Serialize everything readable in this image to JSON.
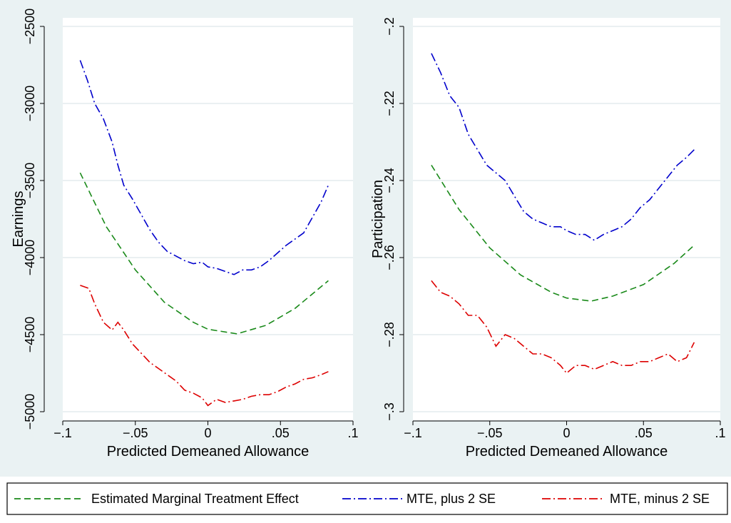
{
  "chart_data": [
    {
      "type": "line",
      "xlabel": "Predicted Demeaned Allowance",
      "ylabel": "Earnings",
      "xlim": [
        -0.1,
        0.1
      ],
      "ylim": [
        -5000,
        -2500
      ],
      "xticks": [
        -0.1,
        -0.05,
        0,
        0.05,
        0.1
      ],
      "xtick_labels": [
        "−.1",
        "−.05",
        "0",
        ".05",
        ".1"
      ],
      "yticks": [
        -5000,
        -4500,
        -4000,
        -3500,
        -3000,
        -2500
      ],
      "ytick_labels": [
        "−5000",
        "−4500",
        "−4000",
        "−3500",
        "−3000",
        "−2500"
      ],
      "grid": true,
      "series": [
        {
          "name": "Estimated Marginal Treatment Effect",
          "color": "#1a8a1a",
          "style": "dashed",
          "x": [
            -0.088,
            -0.07,
            -0.05,
            -0.03,
            -0.01,
            0.0,
            0.02,
            0.04,
            0.06,
            0.083
          ],
          "y": [
            -3450,
            -3800,
            -4080,
            -4290,
            -4420,
            -4465,
            -4495,
            -4440,
            -4330,
            -4150
          ]
        },
        {
          "name": "MTE, plus 2 SE",
          "color": "#0000cc",
          "style": "dashdot",
          "x": [
            -0.088,
            -0.083,
            -0.078,
            -0.072,
            -0.066,
            -0.062,
            -0.058,
            -0.052,
            -0.046,
            -0.04,
            -0.034,
            -0.028,
            -0.022,
            -0.016,
            -0.01,
            -0.004,
            0.0,
            0.006,
            0.012,
            0.018,
            0.024,
            0.03,
            0.036,
            0.042,
            0.048,
            0.054,
            0.06,
            0.066,
            0.072,
            0.078,
            0.083
          ],
          "y": [
            -2720,
            -2850,
            -3000,
            -3100,
            -3250,
            -3400,
            -3530,
            -3620,
            -3720,
            -3820,
            -3900,
            -3960,
            -3990,
            -4020,
            -4040,
            -4030,
            -4060,
            -4070,
            -4090,
            -4110,
            -4080,
            -4080,
            -4060,
            -4020,
            -3970,
            -3920,
            -3880,
            -3840,
            -3740,
            -3640,
            -3530
          ]
        },
        {
          "name": "MTE, minus 2 SE",
          "color": "#dd0000",
          "style": "dashdot",
          "x": [
            -0.088,
            -0.082,
            -0.078,
            -0.072,
            -0.066,
            -0.062,
            -0.058,
            -0.052,
            -0.046,
            -0.04,
            -0.034,
            -0.028,
            -0.022,
            -0.016,
            -0.01,
            -0.004,
            0.0,
            0.006,
            0.012,
            0.018,
            0.024,
            0.03,
            0.036,
            0.042,
            0.048,
            0.054,
            0.06,
            0.066,
            0.072,
            0.078,
            0.083
          ],
          "y": [
            -4180,
            -4200,
            -4300,
            -4420,
            -4470,
            -4420,
            -4470,
            -4560,
            -4620,
            -4680,
            -4720,
            -4760,
            -4800,
            -4860,
            -4880,
            -4910,
            -4960,
            -4920,
            -4940,
            -4930,
            -4920,
            -4900,
            -4890,
            -4890,
            -4870,
            -4840,
            -4820,
            -4790,
            -4780,
            -4760,
            -4740
          ]
        }
      ]
    },
    {
      "type": "line",
      "xlabel": "Predicted Demeaned Allowance",
      "ylabel": "Participation",
      "xlim": [
        -0.1,
        0.1
      ],
      "ylim": [
        -0.3,
        -0.2
      ],
      "xticks": [
        -0.1,
        -0.05,
        0,
        0.05,
        0.1
      ],
      "xtick_labels": [
        "−.1",
        "−.05",
        "0",
        ".05",
        ".1"
      ],
      "yticks": [
        -0.3,
        -0.28,
        -0.26,
        -0.24,
        -0.22,
        -0.2
      ],
      "ytick_labels": [
        "−.3",
        "−.28",
        "−.26",
        "−.24",
        "−.22",
        "−.2"
      ],
      "grid": true,
      "series": [
        {
          "name": "Estimated Marginal Treatment Effect",
          "color": "#1a8a1a",
          "style": "dashed",
          "x": [
            -0.088,
            -0.07,
            -0.05,
            -0.03,
            -0.01,
            0.0,
            0.016,
            0.03,
            0.05,
            0.07,
            0.083
          ],
          "y": [
            -0.236,
            -0.2475,
            -0.2575,
            -0.2645,
            -0.269,
            -0.2705,
            -0.2713,
            -0.27,
            -0.267,
            -0.2615,
            -0.2568
          ]
        },
        {
          "name": "MTE, plus 2 SE",
          "color": "#0000cc",
          "style": "dashdot",
          "x": [
            -0.088,
            -0.082,
            -0.076,
            -0.07,
            -0.064,
            -0.058,
            -0.052,
            -0.046,
            -0.04,
            -0.034,
            -0.028,
            -0.022,
            -0.016,
            -0.01,
            -0.004,
            0.0,
            0.006,
            0.012,
            0.018,
            0.024,
            0.03,
            0.036,
            0.042,
            0.048,
            0.054,
            0.06,
            0.066,
            0.072,
            0.078,
            0.083
          ],
          "y": [
            -0.207,
            -0.212,
            -0.218,
            -0.221,
            -0.228,
            -0.232,
            -0.236,
            -0.238,
            -0.24,
            -0.244,
            -0.248,
            -0.25,
            -0.251,
            -0.252,
            -0.252,
            -0.253,
            -0.254,
            -0.254,
            -0.2555,
            -0.254,
            -0.253,
            -0.252,
            -0.25,
            -0.247,
            -0.245,
            -0.242,
            -0.239,
            -0.236,
            -0.234,
            -0.232
          ]
        },
        {
          "name": "MTE, minus 2 SE",
          "color": "#dd0000",
          "style": "dashdot",
          "x": [
            -0.088,
            -0.082,
            -0.076,
            -0.07,
            -0.064,
            -0.058,
            -0.052,
            -0.046,
            -0.04,
            -0.034,
            -0.028,
            -0.022,
            -0.016,
            -0.01,
            -0.004,
            0.0,
            0.006,
            0.012,
            0.018,
            0.024,
            0.03,
            0.036,
            0.042,
            0.048,
            0.054,
            0.06,
            0.066,
            0.072,
            0.078,
            0.083
          ],
          "y": [
            -0.266,
            -0.269,
            -0.27,
            -0.272,
            -0.275,
            -0.275,
            -0.278,
            -0.283,
            -0.28,
            -0.281,
            -0.283,
            -0.285,
            -0.285,
            -0.286,
            -0.288,
            -0.29,
            -0.288,
            -0.288,
            -0.289,
            -0.288,
            -0.287,
            -0.288,
            -0.288,
            -0.287,
            -0.287,
            -0.286,
            -0.285,
            -0.287,
            -0.286,
            -0.282
          ]
        }
      ]
    }
  ],
  "legend": {
    "placement": "bottom",
    "items": [
      {
        "label": "Estimated Marginal Treatment Effect",
        "color": "#1a8a1a",
        "style": "dashed"
      },
      {
        "label": "MTE, plus 2 SE",
        "color": "#0000cc",
        "style": "dashdot"
      },
      {
        "label": "MTE, minus 2 SE",
        "color": "#dd0000",
        "style": "dashdot"
      }
    ]
  },
  "colors": {
    "background": "#eaf2f3",
    "plot": "#ffffff",
    "grid": "#dde7ea"
  }
}
